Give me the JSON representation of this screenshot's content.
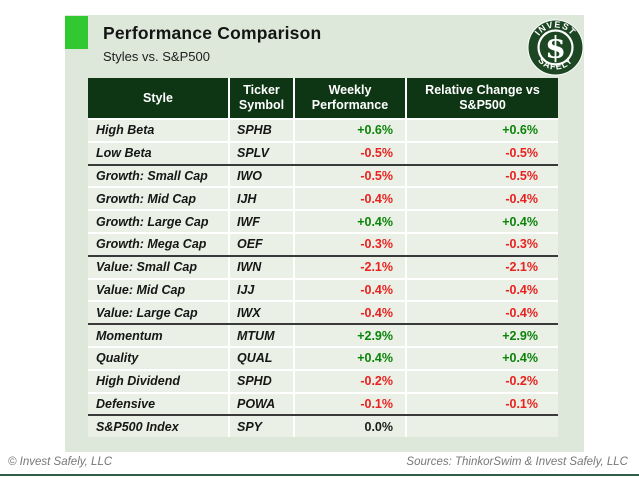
{
  "colors": {
    "panel_bg": "#dde8da",
    "row_bg": "#eaf0e5",
    "header_bg": "#0e3615",
    "accent_square": "#32c832",
    "positive": "#0a840a",
    "negative": "#e9211f",
    "bottom_bar": "#2f5f49",
    "logo_bg": "#1d4723"
  },
  "header": {
    "title": "Performance Comparison",
    "subtitle": "Styles vs. S&P500"
  },
  "logo": {
    "arc_top": "INVEST",
    "arc_bottom": "SAFELY",
    "symbol": "$"
  },
  "table": {
    "columns": [
      "Style",
      "Ticker Symbol",
      "Weekly Performance",
      "Relative Change vs S&P500"
    ],
    "rows": [
      {
        "style": "High Beta",
        "ticker": "SPHB",
        "weekly": "+0.6%",
        "relative": "+0.6%",
        "tone": "pos",
        "group_end": false
      },
      {
        "style": "Low Beta",
        "ticker": "SPLV",
        "weekly": "-0.5%",
        "relative": "-0.5%",
        "tone": "neg",
        "group_end": true
      },
      {
        "style": "Growth: Small Cap",
        "ticker": "IWO",
        "weekly": "-0.5%",
        "relative": "-0.5%",
        "tone": "neg",
        "group_end": false
      },
      {
        "style": "Growth: Mid Cap",
        "ticker": "IJH",
        "weekly": "-0.4%",
        "relative": "-0.4%",
        "tone": "neg",
        "group_end": false
      },
      {
        "style": "Growth: Large Cap",
        "ticker": "IWF",
        "weekly": "+0.4%",
        "relative": "+0.4%",
        "tone": "pos",
        "group_end": false
      },
      {
        "style": "Growth: Mega Cap",
        "ticker": "OEF",
        "weekly": "-0.3%",
        "relative": "-0.3%",
        "tone": "neg",
        "group_end": true
      },
      {
        "style": "Value: Small Cap",
        "ticker": "IWN",
        "weekly": "-2.1%",
        "relative": "-2.1%",
        "tone": "neg",
        "group_end": false
      },
      {
        "style": "Value: Mid Cap",
        "ticker": "IJJ",
        "weekly": "-0.4%",
        "relative": "-0.4%",
        "tone": "neg",
        "group_end": false
      },
      {
        "style": "Value: Large Cap",
        "ticker": "IWX",
        "weekly": "-0.4%",
        "relative": "-0.4%",
        "tone": "neg",
        "group_end": true
      },
      {
        "style": "Momentum",
        "ticker": "MTUM",
        "weekly": "+2.9%",
        "relative": "+2.9%",
        "tone": "pos",
        "group_end": false
      },
      {
        "style": "Quality",
        "ticker": "QUAL",
        "weekly": "+0.4%",
        "relative": "+0.4%",
        "tone": "pos",
        "group_end": false
      },
      {
        "style": "High Dividend",
        "ticker": "SPHD",
        "weekly": "-0.2%",
        "relative": "-0.2%",
        "tone": "neg",
        "group_end": false
      },
      {
        "style": "Defensive",
        "ticker": "POWA",
        "weekly": "-0.1%",
        "relative": "-0.1%",
        "tone": "neg",
        "group_end": true
      },
      {
        "style": "S&P500 Index",
        "ticker": "SPY",
        "weekly": "0.0%",
        "relative": "",
        "tone": "neutral",
        "group_end": false
      }
    ]
  },
  "footer": {
    "left": "© Invest Safely, LLC",
    "right": "Sources: ThinkorSwim & Invest Safely, LLC"
  },
  "chart_data": {
    "type": "table",
    "title": "Performance Comparison",
    "subtitle": "Styles vs. S&P500",
    "columns": [
      "Style",
      "Ticker Symbol",
      "Weekly Performance",
      "Relative Change vs S&P500"
    ],
    "rows": [
      [
        "High Beta",
        "SPHB",
        "+0.6%",
        "+0.6%"
      ],
      [
        "Low Beta",
        "SPLV",
        "-0.5%",
        "-0.5%"
      ],
      [
        "Growth: Small Cap",
        "IWO",
        "-0.5%",
        "-0.5%"
      ],
      [
        "Growth: Mid Cap",
        "IJH",
        "-0.4%",
        "-0.4%"
      ],
      [
        "Growth: Large Cap",
        "IWF",
        "+0.4%",
        "+0.4%"
      ],
      [
        "Growth: Mega Cap",
        "OEF",
        "-0.3%",
        "-0.3%"
      ],
      [
        "Value: Small Cap",
        "IWN",
        "-2.1%",
        "-2.1%"
      ],
      [
        "Value: Mid Cap",
        "IJJ",
        "-0.4%",
        "-0.4%"
      ],
      [
        "Value: Large Cap",
        "IWX",
        "-0.4%",
        "-0.4%"
      ],
      [
        "Momentum",
        "MTUM",
        "+2.9%",
        "+2.9%"
      ],
      [
        "Quality",
        "QUAL",
        "+0.4%",
        "+0.4%"
      ],
      [
        "High Dividend",
        "SPHD",
        "-0.2%",
        "-0.2%"
      ],
      [
        "Defensive",
        "POWA",
        "-0.1%",
        "-0.1%"
      ],
      [
        "S&P500 Index",
        "SPY",
        "0.0%",
        ""
      ]
    ]
  }
}
